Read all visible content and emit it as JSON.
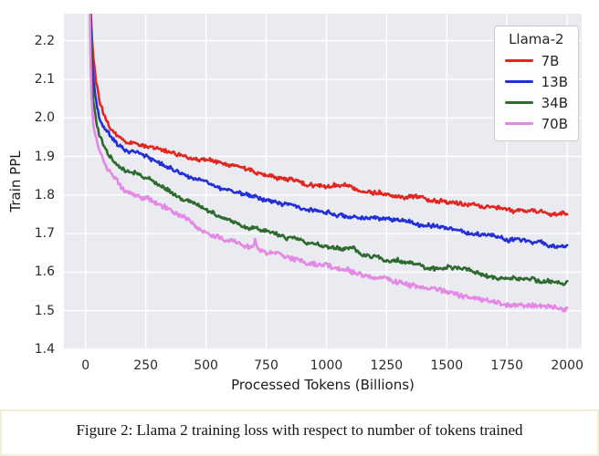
{
  "figure": {
    "caption": "Figure 2: Llama 2 training loss with respect to number of tokens trained",
    "highlight_border_color": "#f5eed5",
    "background_color": "#ffffff"
  },
  "chart_data": {
    "type": "line",
    "title": "",
    "xlabel": "Processed Tokens (Billions)",
    "ylabel": "Train PPL",
    "xlim": [
      -90,
      2060
    ],
    "ylim": [
      1.4,
      2.27
    ],
    "xticks": [
      0,
      250,
      500,
      750,
      1000,
      1250,
      1500,
      1750,
      2000
    ],
    "yticks": [
      1.4,
      1.5,
      1.6,
      1.7,
      1.8,
      1.9,
      2.0,
      2.1,
      2.2
    ],
    "grid": true,
    "plot_bg": "#eaeaf1",
    "grid_color": "#ffffff",
    "legend": {
      "title": "Llama-2",
      "position": "upper right"
    },
    "series": [
      {
        "name": "7B",
        "color": "#e02721",
        "noise": 0.0045,
        "points": [
          [
            12,
            2.56
          ],
          [
            18,
            2.34
          ],
          [
            24,
            2.24
          ],
          [
            32,
            2.16
          ],
          [
            45,
            2.09
          ],
          [
            60,
            2.035
          ],
          [
            80,
            1.998
          ],
          [
            100,
            1.974
          ],
          [
            130,
            1.951
          ],
          [
            160,
            1.938
          ],
          [
            200,
            1.932
          ],
          [
            250,
            1.927
          ],
          [
            300,
            1.919
          ],
          [
            350,
            1.912
          ],
          [
            400,
            1.904
          ],
          [
            450,
            1.897
          ],
          [
            530,
            1.887
          ],
          [
            600,
            1.876
          ],
          [
            660,
            1.868
          ],
          [
            720,
            1.856
          ],
          [
            810,
            1.842
          ],
          [
            900,
            1.832
          ],
          [
            1000,
            1.824
          ],
          [
            1110,
            1.816
          ],
          [
            1200,
            1.81
          ],
          [
            1270,
            1.806
          ],
          [
            1350,
            1.8
          ],
          [
            1400,
            1.796
          ],
          [
            1500,
            1.788
          ],
          [
            1600,
            1.778
          ],
          [
            1700,
            1.765
          ],
          [
            1800,
            1.757
          ],
          [
            1900,
            1.75
          ],
          [
            2000,
            1.745
          ]
        ]
      },
      {
        "name": "13B",
        "color": "#2230d5",
        "noise": 0.0045,
        "points": [
          [
            12,
            2.56
          ],
          [
            18,
            2.31
          ],
          [
            24,
            2.19
          ],
          [
            32,
            2.1
          ],
          [
            45,
            2.035
          ],
          [
            60,
            1.998
          ],
          [
            80,
            1.972
          ],
          [
            100,
            1.952
          ],
          [
            130,
            1.932
          ],
          [
            160,
            1.916
          ],
          [
            200,
            1.907
          ],
          [
            250,
            1.899
          ],
          [
            300,
            1.886
          ],
          [
            350,
            1.872
          ],
          [
            400,
            1.857
          ],
          [
            450,
            1.845
          ],
          [
            530,
            1.828
          ],
          [
            600,
            1.815
          ],
          [
            660,
            1.804
          ],
          [
            720,
            1.793
          ],
          [
            810,
            1.779
          ],
          [
            900,
            1.768
          ],
          [
            1000,
            1.757
          ],
          [
            1110,
            1.748
          ],
          [
            1200,
            1.741
          ],
          [
            1270,
            1.735
          ],
          [
            1350,
            1.727
          ],
          [
            1400,
            1.723
          ],
          [
            1500,
            1.713
          ],
          [
            1600,
            1.703
          ],
          [
            1700,
            1.692
          ],
          [
            1800,
            1.682
          ],
          [
            1900,
            1.674
          ],
          [
            2000,
            1.668
          ]
        ]
      },
      {
        "name": "34B",
        "color": "#2e6b2e",
        "noise": 0.0045,
        "points": [
          [
            12,
            2.56
          ],
          [
            18,
            2.27
          ],
          [
            24,
            2.13
          ],
          [
            32,
            2.04
          ],
          [
            45,
            1.985
          ],
          [
            60,
            1.952
          ],
          [
            80,
            1.922
          ],
          [
            100,
            1.901
          ],
          [
            130,
            1.876
          ],
          [
            160,
            1.86
          ],
          [
            200,
            1.851
          ],
          [
            250,
            1.841
          ],
          [
            300,
            1.827
          ],
          [
            350,
            1.809
          ],
          [
            400,
            1.791
          ],
          [
            450,
            1.776
          ],
          [
            530,
            1.752
          ],
          [
            600,
            1.735
          ],
          [
            660,
            1.721
          ],
          [
            720,
            1.708
          ],
          [
            810,
            1.692
          ],
          [
            900,
            1.678
          ],
          [
            1000,
            1.664
          ],
          [
            1110,
            1.651
          ],
          [
            1200,
            1.64
          ],
          [
            1270,
            1.631
          ],
          [
            1350,
            1.622
          ],
          [
            1400,
            1.618
          ],
          [
            1500,
            1.609
          ],
          [
            1600,
            1.6
          ],
          [
            1700,
            1.591
          ],
          [
            1800,
            1.582
          ],
          [
            1900,
            1.576
          ],
          [
            2000,
            1.57
          ]
        ]
      },
      {
        "name": "70B",
        "color": "#e388e3",
        "noise": 0.0055,
        "spike": [
          705,
          0.026
        ],
        "points": [
          [
            12,
            2.56
          ],
          [
            18,
            2.22
          ],
          [
            24,
            2.06
          ],
          [
            32,
            1.985
          ],
          [
            45,
            1.94
          ],
          [
            60,
            1.908
          ],
          [
            80,
            1.88
          ],
          [
            100,
            1.86
          ],
          [
            130,
            1.835
          ],
          [
            160,
            1.81
          ],
          [
            200,
            1.801
          ],
          [
            250,
            1.792
          ],
          [
            300,
            1.778
          ],
          [
            350,
            1.76
          ],
          [
            400,
            1.742
          ],
          [
            450,
            1.726
          ],
          [
            530,
            1.697
          ],
          [
            600,
            1.681
          ],
          [
            660,
            1.669
          ],
          [
            720,
            1.66
          ],
          [
            810,
            1.642
          ],
          [
            900,
            1.627
          ],
          [
            1000,
            1.612
          ],
          [
            1110,
            1.598
          ],
          [
            1200,
            1.588
          ],
          [
            1270,
            1.58
          ],
          [
            1350,
            1.567
          ],
          [
            1400,
            1.561
          ],
          [
            1500,
            1.546
          ],
          [
            1600,
            1.533
          ],
          [
            1700,
            1.522
          ],
          [
            1800,
            1.512
          ],
          [
            1900,
            1.505
          ],
          [
            2000,
            1.499
          ]
        ]
      }
    ]
  }
}
